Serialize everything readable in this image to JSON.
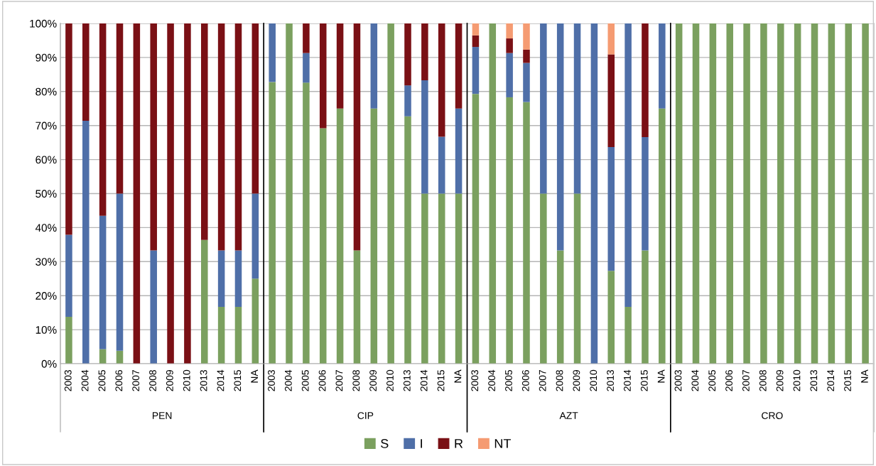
{
  "chart_data": {
    "type": "bar",
    "stacked": true,
    "categories": [
      "2003",
      "2004",
      "2005",
      "2006",
      "2007",
      "2008",
      "2009",
      "2010",
      "2013",
      "2014",
      "2015",
      "NA",
      "2003",
      "2004",
      "2005",
      "2006",
      "2007",
      "2008",
      "2009",
      "2010",
      "2013",
      "2014",
      "2015",
      "NA",
      "2003",
      "2004",
      "2005",
      "2006",
      "2007",
      "2008",
      "2009",
      "2010",
      "2013",
      "2014",
      "2015",
      "NA",
      "2003",
      "2004",
      "2005",
      "2006",
      "2007",
      "2008",
      "2009",
      "2010",
      "2013",
      "2014",
      "2015",
      "NA"
    ],
    "series": [
      {
        "name": "S",
        "color": "#7ba05f",
        "values": [
          13.8,
          0,
          4.3,
          3.8,
          0,
          0,
          0,
          0,
          36.4,
          16.7,
          16.7,
          25,
          82.8,
          100,
          82.6,
          69.2,
          75,
          33.3,
          75,
          100,
          72.7,
          50,
          50,
          50,
          79.3,
          100,
          78.3,
          76.9,
          50,
          33.3,
          50,
          0,
          27.3,
          16.7,
          33.3,
          75,
          100,
          100,
          100,
          100,
          100,
          100,
          100,
          100,
          100,
          100,
          100,
          100
        ]
      },
      {
        "name": "I",
        "color": "#4f6fa8",
        "values": [
          24.1,
          71.4,
          39.2,
          46.2,
          0,
          33.3,
          0,
          0,
          0,
          16.6,
          16.6,
          25,
          17.2,
          0,
          8.7,
          0,
          0,
          0,
          25,
          0,
          9.1,
          33.3,
          16.7,
          25,
          13.8,
          0,
          13.0,
          11.5,
          50,
          66.7,
          50,
          100,
          36.4,
          83.3,
          33.3,
          25,
          0,
          0,
          0,
          0,
          0,
          0,
          0,
          0,
          0,
          0,
          0,
          0
        ]
      },
      {
        "name": "R",
        "color": "#7a1015",
        "values": [
          62.1,
          28.6,
          56.5,
          50,
          100,
          66.7,
          100,
          100,
          63.6,
          66.7,
          66.7,
          50,
          0,
          0,
          8.7,
          30.8,
          25,
          66.7,
          0,
          0,
          18.2,
          16.7,
          33.3,
          25,
          3.4,
          0,
          4.3,
          3.9,
          0,
          0,
          0,
          0,
          27.2,
          0,
          33.4,
          0,
          0,
          0,
          0,
          0,
          0,
          0,
          0,
          0,
          0,
          0,
          0,
          0
        ]
      },
      {
        "name": "NT",
        "color": "#f59b72",
        "values": [
          0,
          0,
          0,
          0,
          0,
          0,
          0,
          0,
          0,
          0,
          0,
          0,
          0,
          0,
          0,
          0,
          0,
          0,
          0,
          0,
          0,
          0,
          0,
          0,
          3.5,
          0,
          4.4,
          7.7,
          0,
          0,
          0,
          0,
          9.1,
          0,
          0,
          0,
          0,
          0,
          0,
          0,
          0,
          0,
          0,
          0,
          0,
          0,
          0,
          0
        ]
      }
    ],
    "ylim": [
      0,
      100
    ],
    "yticks": [
      {
        "value": 0,
        "label": "0%"
      },
      {
        "value": 10,
        "label": "10%"
      },
      {
        "value": 20,
        "label": "20%"
      },
      {
        "value": 30,
        "label": "30%"
      },
      {
        "value": 40,
        "label": "40%"
      },
      {
        "value": 50,
        "label": "50%"
      },
      {
        "value": 60,
        "label": "60%"
      },
      {
        "value": 70,
        "label": "70%"
      },
      {
        "value": 80,
        "label": "80%"
      },
      {
        "value": 90,
        "label": "90%"
      },
      {
        "value": 100,
        "label": "100%"
      }
    ],
    "grid": "y",
    "legend": "bottom",
    "annotations": [
      "PEN",
      "CIP",
      "AZT",
      "CRO"
    ]
  }
}
